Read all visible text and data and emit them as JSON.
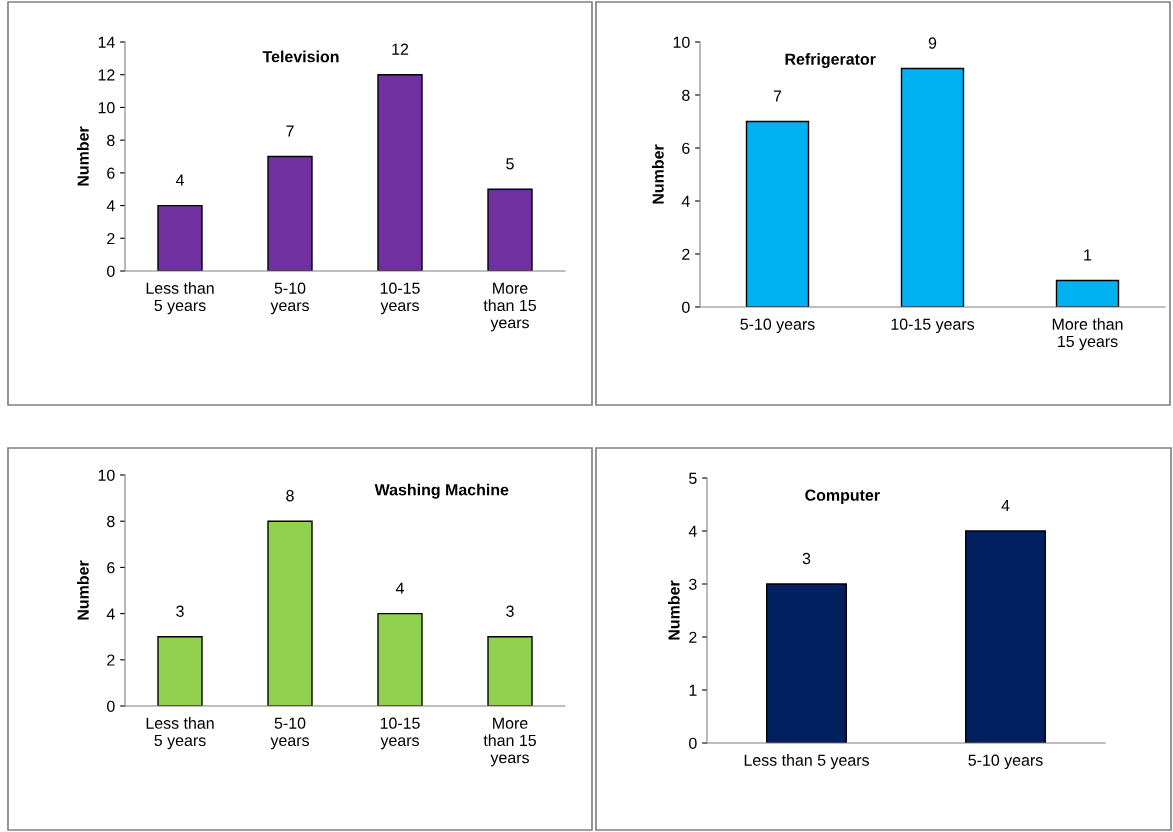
{
  "chart_data": [
    {
      "type": "bar",
      "title": "Television",
      "ylabel": "Number",
      "categories": [
        "Less than\n5 years",
        "5-10\nyears",
        "10-15\nyears",
        "More\nthan 15\nyears"
      ],
      "values": [
        4,
        7,
        12,
        5
      ],
      "color": "#7030a0",
      "ylim": [
        0,
        14
      ],
      "yticks": [
        0,
        2,
        4,
        6,
        8,
        10,
        12,
        14
      ],
      "data_labels": true,
      "grid": false,
      "legend": false
    },
    {
      "type": "bar",
      "title": "Refrigerator",
      "ylabel": "Number",
      "categories": [
        "5-10 years",
        "10-15 years",
        "More than\n15 years"
      ],
      "values": [
        7,
        9,
        1
      ],
      "color": "#00b0f0",
      "ylim": [
        0,
        10
      ],
      "yticks": [
        0,
        2,
        4,
        6,
        8,
        10
      ],
      "data_labels": true,
      "grid": false,
      "legend": false
    },
    {
      "type": "bar",
      "title": "Washing Machine",
      "ylabel": "Number",
      "categories": [
        "Less than\n5 years",
        "5-10\nyears",
        "10-15\nyears",
        "More\nthan 15\nyears"
      ],
      "values": [
        3,
        8,
        4,
        3
      ],
      "color": "#92d050",
      "ylim": [
        0,
        10
      ],
      "yticks": [
        0,
        2,
        4,
        6,
        8,
        10
      ],
      "data_labels": true,
      "grid": false,
      "legend": false
    },
    {
      "type": "bar",
      "title": "Computer",
      "ylabel": "Number",
      "categories": [
        "Less than 5 years",
        "5-10 years"
      ],
      "values": [
        3,
        4
      ],
      "color": "#002060",
      "ylim": [
        0,
        5
      ],
      "yticks": [
        0,
        1,
        2,
        3,
        4,
        5
      ],
      "data_labels": true,
      "grid": false,
      "legend": false
    }
  ]
}
